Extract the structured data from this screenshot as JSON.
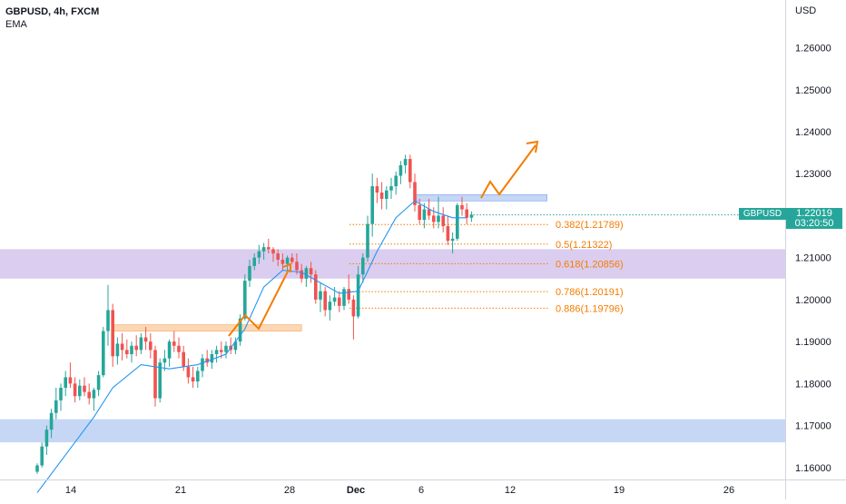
{
  "legend": {
    "symbol": "GBPUSD, 4h, FXCM",
    "indicator": "EMA"
  },
  "price_tag": {
    "symbol": "GBPUSD",
    "price": "1.22019",
    "countdown": "03:20:50"
  },
  "colors": {
    "up": "#26a69a",
    "down": "#ef5350",
    "ema": "#2196f3",
    "fib": "#f57c00",
    "zone_blue": "#bcd0f5",
    "zone_purple": "#d5c4ec",
    "zone_orange": "#fbd0a8"
  },
  "chart_data": {
    "type": "candlestick",
    "currency_label": "USD",
    "ylim": [
      1.1565,
      1.2705
    ],
    "y_ticks": [
      "1.26000",
      "1.25000",
      "1.24000",
      "1.23000",
      "1.22000",
      "1.21000",
      "1.20000",
      "1.19000",
      "1.18000",
      "1.17000",
      "1.16000"
    ],
    "x_ticks": [
      "14",
      "21",
      "28",
      "Dec",
      "6",
      "12",
      "19",
      "26"
    ],
    "candles": [
      [
        1.159,
        1.161,
        1.1585,
        1.1605
      ],
      [
        1.1605,
        1.166,
        1.16,
        1.165
      ],
      [
        1.165,
        1.17,
        1.163,
        1.169
      ],
      [
        1.169,
        1.174,
        1.167,
        1.173
      ],
      [
        1.173,
        1.179,
        1.1715,
        1.176
      ],
      [
        1.176,
        1.18,
        1.1735,
        1.179
      ],
      [
        1.179,
        1.183,
        1.177,
        1.1815
      ],
      [
        1.1815,
        1.185,
        1.179,
        1.18
      ],
      [
        1.18,
        1.1815,
        1.1755,
        1.177
      ],
      [
        1.177,
        1.181,
        1.176,
        1.1795
      ],
      [
        1.1795,
        1.1815,
        1.177,
        1.178
      ],
      [
        1.178,
        1.18,
        1.175,
        1.1765
      ],
      [
        1.1765,
        1.179,
        1.1735,
        1.1785
      ],
      [
        1.1785,
        1.183,
        1.177,
        1.182
      ],
      [
        1.182,
        1.1935,
        1.1815,
        1.1925
      ],
      [
        1.1925,
        1.2035,
        1.189,
        1.1975
      ],
      [
        1.1975,
        1.199,
        1.184,
        1.1865
      ],
      [
        1.1865,
        1.191,
        1.1845,
        1.1895
      ],
      [
        1.1895,
        1.192,
        1.1855,
        1.188
      ],
      [
        1.188,
        1.1905,
        1.186,
        1.187
      ],
      [
        1.187,
        1.19,
        1.185,
        1.189
      ],
      [
        1.189,
        1.1915,
        1.1865,
        1.188
      ],
      [
        1.188,
        1.192,
        1.187,
        1.191
      ],
      [
        1.191,
        1.1935,
        1.188,
        1.19
      ],
      [
        1.19,
        1.192,
        1.186,
        1.188
      ],
      [
        1.188,
        1.189,
        1.1745,
        1.1765
      ],
      [
        1.1765,
        1.186,
        1.1755,
        1.185
      ],
      [
        1.185,
        1.188,
        1.183,
        1.186
      ],
      [
        1.186,
        1.1905,
        1.184,
        1.19
      ],
      [
        1.19,
        1.1925,
        1.1875,
        1.189
      ],
      [
        1.189,
        1.191,
        1.186,
        1.1875
      ],
      [
        1.1875,
        1.189,
        1.183,
        1.184
      ],
      [
        1.184,
        1.186,
        1.18,
        1.1815
      ],
      [
        1.1815,
        1.184,
        1.179,
        1.1805
      ],
      [
        1.1805,
        1.184,
        1.179,
        1.183
      ],
      [
        1.183,
        1.187,
        1.1815,
        1.186
      ],
      [
        1.186,
        1.188,
        1.184,
        1.185
      ],
      [
        1.185,
        1.188,
        1.1835,
        1.187
      ],
      [
        1.187,
        1.189,
        1.185,
        1.188
      ],
      [
        1.188,
        1.19,
        1.186,
        1.1875
      ],
      [
        1.1875,
        1.19,
        1.186,
        1.189
      ],
      [
        1.189,
        1.191,
        1.187,
        1.188
      ],
      [
        1.188,
        1.191,
        1.187,
        1.19
      ],
      [
        1.19,
        1.1965,
        1.189,
        1.1955
      ],
      [
        1.1955,
        1.206,
        1.195,
        1.2045
      ],
      [
        1.2045,
        1.2095,
        1.203,
        1.208
      ],
      [
        1.208,
        1.211,
        1.207,
        1.21
      ],
      [
        1.21,
        1.213,
        1.2085,
        1.2115
      ],
      [
        1.2115,
        1.2135,
        1.2095,
        1.2125
      ],
      [
        1.2125,
        1.2145,
        1.211,
        1.212
      ],
      [
        1.212,
        1.2125,
        1.209,
        1.211
      ],
      [
        1.211,
        1.212,
        1.208,
        1.2095
      ],
      [
        1.2095,
        1.211,
        1.207,
        1.2085
      ],
      [
        1.2085,
        1.2105,
        1.207,
        1.21
      ],
      [
        1.21,
        1.211,
        1.2085,
        1.209
      ],
      [
        1.209,
        1.211,
        1.206,
        1.207
      ],
      [
        1.207,
        1.2085,
        1.204,
        1.205
      ],
      [
        1.205,
        1.208,
        1.203,
        1.2075
      ],
      [
        1.2075,
        1.209,
        1.204,
        1.206
      ],
      [
        1.206,
        1.207,
        1.199,
        1.2
      ],
      [
        1.2,
        1.204,
        1.197,
        1.202
      ],
      [
        1.202,
        1.203,
        1.196,
        1.1975
      ],
      [
        1.1975,
        1.201,
        1.195,
        1.1995
      ],
      [
        1.1995,
        1.203,
        1.1985,
        1.2005
      ],
      [
        1.2005,
        1.202,
        1.197,
        1.1985
      ],
      [
        1.1985,
        1.203,
        1.1975,
        1.2025
      ],
      [
        1.2025,
        1.206,
        1.199,
        1.2
      ],
      [
        1.2,
        1.201,
        1.1905,
        1.196
      ],
      [
        1.196,
        1.208,
        1.1955,
        1.206
      ],
      [
        1.206,
        1.211,
        1.204,
        1.21
      ],
      [
        1.21,
        1.22,
        1.209,
        1.218
      ],
      [
        1.218,
        1.23,
        1.215,
        1.227
      ],
      [
        1.227,
        1.229,
        1.223,
        1.2255
      ],
      [
        1.2255,
        1.228,
        1.2215,
        1.224
      ],
      [
        1.224,
        1.227,
        1.2215,
        1.226
      ],
      [
        1.226,
        1.229,
        1.224,
        1.227
      ],
      [
        1.227,
        1.2305,
        1.225,
        1.2295
      ],
      [
        1.2295,
        1.233,
        1.2275,
        1.232
      ],
      [
        1.232,
        1.2345,
        1.23,
        1.2335
      ],
      [
        1.2335,
        1.2345,
        1.2265,
        1.228
      ],
      [
        1.228,
        1.23,
        1.221,
        1.2225
      ],
      [
        1.2225,
        1.224,
        1.218,
        1.219
      ],
      [
        1.219,
        1.223,
        1.217,
        1.2215
      ],
      [
        1.2215,
        1.224,
        1.219,
        1.22
      ],
      [
        1.22,
        1.222,
        1.217,
        1.2185
      ],
      [
        1.2185,
        1.2245,
        1.217,
        1.22
      ],
      [
        1.22,
        1.222,
        1.216,
        1.2175
      ],
      [
        1.2175,
        1.22,
        1.213,
        1.214
      ],
      [
        1.214,
        1.216,
        1.211,
        1.2145
      ],
      [
        1.2145,
        1.223,
        1.214,
        1.2225
      ],
      [
        1.2225,
        1.2245,
        1.22,
        1.2215
      ],
      [
        1.2215,
        1.223,
        1.218,
        1.2195
      ],
      [
        1.2195,
        1.221,
        1.2185,
        1.2202
      ]
    ],
    "ema_points": [
      [
        0,
        1.154
      ],
      [
        6,
        1.163
      ],
      [
        12,
        1.172
      ],
      [
        16,
        1.179
      ],
      [
        22,
        1.1845
      ],
      [
        28,
        1.1835
      ],
      [
        34,
        1.1845
      ],
      [
        40,
        1.187
      ],
      [
        44,
        1.193
      ],
      [
        48,
        1.203
      ],
      [
        52,
        1.207
      ],
      [
        56,
        1.2065
      ],
      [
        60,
        1.204
      ],
      [
        64,
        1.2015
      ],
      [
        68,
        1.202
      ],
      [
        72,
        1.2115
      ],
      [
        76,
        1.2195
      ],
      [
        80,
        1.2235
      ],
      [
        84,
        1.221
      ],
      [
        88,
        1.2195
      ],
      [
        91,
        1.2195
      ]
    ],
    "fib_levels": [
      {
        "label": "0.382(1.21789)",
        "value": 1.21789
      },
      {
        "label": "0.5(1.21322)",
        "value": 1.21322
      },
      {
        "label": "0.618(1.20856)",
        "value": 1.20856
      },
      {
        "label": "0.786(1.20191)",
        "value": 1.20191
      },
      {
        "label": "0.886(1.19796)",
        "value": 1.19796
      }
    ],
    "zones": [
      {
        "name": "blue-zone-top",
        "y_from": 1.2235,
        "y_to": 1.225,
        "x_from_bar": 80,
        "x_to_bar": 108
      },
      {
        "name": "purple-zone",
        "y_from": 1.205,
        "y_to": 1.212,
        "x_from_bar": -10,
        "x_to_bar": 200
      },
      {
        "name": "orange-zone",
        "y_from": 1.1925,
        "y_to": 1.194,
        "x_from_bar": 16,
        "x_to_bar": 56
      },
      {
        "name": "blue-zone-bottom",
        "y_from": 1.166,
        "y_to": 1.1715,
        "x_from_bar": -10,
        "x_to_bar": 200
      }
    ],
    "last_price": 1.22019
  }
}
